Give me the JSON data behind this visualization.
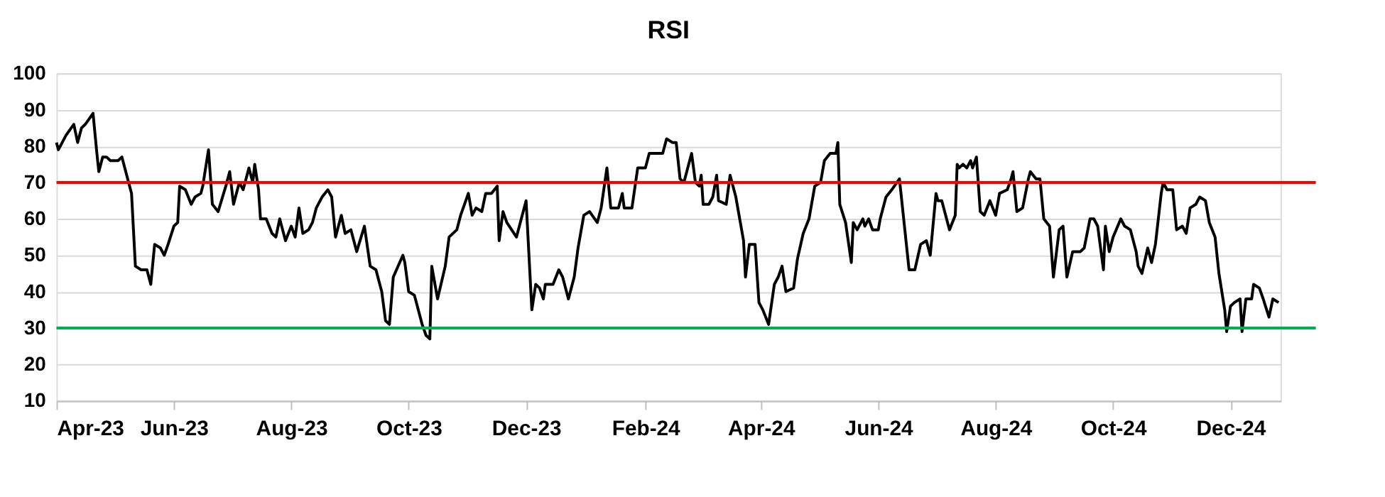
{
  "chart_data": {
    "type": "line",
    "title": "RSI",
    "x": [
      "2023-04-01",
      "2023-04-02",
      "2023-04-06",
      "2023-04-10",
      "2023-04-12",
      "2023-04-14",
      "2023-04-16",
      "2023-04-20",
      "2023-04-22",
      "2023-04-23",
      "2023-04-25",
      "2023-04-27",
      "2023-04-29",
      "2023-05-03",
      "2023-05-05",
      "2023-05-06",
      "2023-05-08",
      "2023-05-10",
      "2023-05-12",
      "2023-05-15",
      "2023-05-18",
      "2023-05-20",
      "2023-05-22",
      "2023-05-25",
      "2023-05-27",
      "2023-05-29",
      "2023-06-01",
      "2023-06-03",
      "2023-06-04",
      "2023-06-07",
      "2023-06-10",
      "2023-06-12",
      "2023-06-15",
      "2023-06-16",
      "2023-06-19",
      "2023-06-21",
      "2023-06-24",
      "2023-06-28",
      "2023-06-30",
      "2023-07-02",
      "2023-07-05",
      "2023-07-07",
      "2023-07-10",
      "2023-07-12",
      "2023-07-13",
      "2023-07-15",
      "2023-07-16",
      "2023-07-19",
      "2023-07-22",
      "2023-07-24",
      "2023-07-26",
      "2023-07-29",
      "2023-08-01",
      "2023-08-03",
      "2023-08-05",
      "2023-08-07",
      "2023-08-10",
      "2023-08-12",
      "2023-08-14",
      "2023-08-17",
      "2023-08-20",
      "2023-08-22",
      "2023-08-24",
      "2023-08-27",
      "2023-08-29",
      "2023-09-01",
      "2023-09-04",
      "2023-09-08",
      "2023-09-11",
      "2023-09-14",
      "2023-09-17",
      "2023-09-19",
      "2023-09-21",
      "2023-09-23",
      "2023-09-28",
      "2023-09-29",
      "2023-10-01",
      "2023-10-04",
      "2023-10-06",
      "2023-10-08",
      "2023-10-10",
      "2023-10-12",
      "2023-10-13",
      "2023-10-16",
      "2023-10-20",
      "2023-10-22",
      "2023-10-26",
      "2023-10-28",
      "2023-10-30",
      "2023-11-01",
      "2023-11-03",
      "2023-11-05",
      "2023-11-08",
      "2023-11-10",
      "2023-11-13",
      "2023-11-16",
      "2023-11-17",
      "2023-11-19",
      "2023-11-21",
      "2023-11-26",
      "2023-11-29",
      "2023-12-01",
      "2023-12-04",
      "2023-12-06",
      "2023-12-08",
      "2023-12-10",
      "2023-12-11",
      "2023-12-15",
      "2023-12-18",
      "2023-12-20",
      "2023-12-23",
      "2023-12-26",
      "2023-12-28",
      "2023-12-31",
      "2024-01-03",
      "2024-01-07",
      "2024-01-09",
      "2024-01-12",
      "2024-01-14",
      "2024-01-18",
      "2024-01-20",
      "2024-01-21",
      "2024-01-25",
      "2024-01-28",
      "2024-02-01",
      "2024-02-03",
      "2024-02-06",
      "2024-02-10",
      "2024-02-12",
      "2024-02-15",
      "2024-02-17",
      "2024-02-19",
      "2024-02-21",
      "2024-02-25",
      "2024-02-27",
      "2024-02-29",
      "2024-03-01",
      "2024-03-02",
      "2024-03-05",
      "2024-03-07",
      "2024-03-09",
      "2024-03-10",
      "2024-03-14",
      "2024-03-16",
      "2024-03-19",
      "2024-03-21",
      "2024-03-23",
      "2024-03-24",
      "2024-03-26",
      "2024-03-29",
      "2024-03-31",
      "2024-04-02",
      "2024-04-05",
      "2024-04-08",
      "2024-04-10",
      "2024-04-12",
      "2024-04-14",
      "2024-04-18",
      "2024-04-20",
      "2024-04-23",
      "2024-04-26",
      "2024-04-27",
      "2024-04-29",
      "2024-05-02",
      "2024-05-04",
      "2024-05-07",
      "2024-05-10",
      "2024-05-11",
      "2024-05-12",
      "2024-05-15",
      "2024-05-18",
      "2024-05-19",
      "2024-05-21",
      "2024-05-24",
      "2024-05-25",
      "2024-05-27",
      "2024-05-29",
      "2024-06-01",
      "2024-06-02",
      "2024-06-05",
      "2024-06-08",
      "2024-06-12",
      "2024-06-15",
      "2024-06-17",
      "2024-06-20",
      "2024-06-23",
      "2024-06-26",
      "2024-06-28",
      "2024-07-01",
      "2024-07-02",
      "2024-07-04",
      "2024-07-07",
      "2024-07-08",
      "2024-07-11",
      "2024-07-12",
      "2024-07-13",
      "2024-07-15",
      "2024-07-17",
      "2024-07-19",
      "2024-07-20",
      "2024-07-22",
      "2024-07-24",
      "2024-07-26",
      "2024-07-29",
      "2024-08-01",
      "2024-08-03",
      "2024-08-07",
      "2024-08-09",
      "2024-08-10",
      "2024-08-12",
      "2024-08-15",
      "2024-08-18",
      "2024-08-19",
      "2024-08-22",
      "2024-08-24",
      "2024-08-26",
      "2024-08-29",
      "2024-08-31",
      "2024-09-03",
      "2024-09-05",
      "2024-09-07",
      "2024-09-10",
      "2024-09-14",
      "2024-09-16",
      "2024-09-19",
      "2024-09-21",
      "2024-09-23",
      "2024-09-26",
      "2024-09-27",
      "2024-09-29",
      "2024-10-01",
      "2024-10-05",
      "2024-10-07",
      "2024-10-10",
      "2024-10-13",
      "2024-10-14",
      "2024-10-16",
      "2024-10-19",
      "2024-10-21",
      "2024-10-23",
      "2024-10-26",
      "2024-10-27",
      "2024-10-29",
      "2024-11-01",
      "2024-11-03",
      "2024-11-06",
      "2024-11-08",
      "2024-11-10",
      "2024-11-13",
      "2024-11-15",
      "2024-11-18",
      "2024-11-20",
      "2024-11-23",
      "2024-11-25",
      "2024-11-28",
      "2024-11-29",
      "2024-12-01",
      "2024-12-03",
      "2024-12-06",
      "2024-12-07",
      "2024-12-09",
      "2024-12-12",
      "2024-12-13",
      "2024-12-16",
      "2024-12-18",
      "2024-12-21",
      "2024-12-23",
      "2024-12-26"
    ],
    "series": [
      {
        "color": "#000000",
        "values": [
          81,
          79,
          83,
          86,
          81,
          85,
          86,
          89,
          78,
          73,
          77,
          77,
          76,
          76,
          77,
          75,
          71,
          67,
          47,
          46,
          46,
          42,
          53,
          52,
          50,
          53,
          58,
          59,
          69,
          68,
          64,
          66,
          67,
          69,
          79,
          64,
          62,
          69,
          73,
          64,
          70,
          68,
          74,
          70,
          75,
          68,
          60,
          60,
          56,
          55,
          60,
          54,
          58,
          55,
          63,
          56,
          57,
          59,
          63,
          66,
          68,
          66,
          55,
          61,
          56,
          57,
          51,
          58,
          47,
          46,
          40,
          32,
          31,
          44,
          50,
          48,
          40,
          39,
          35,
          31,
          28,
          27,
          47,
          38,
          47,
          55,
          57,
          61,
          64,
          67,
          61,
          63,
          62,
          67,
          67,
          69,
          54,
          62,
          59,
          55,
          61,
          65,
          35,
          42,
          41,
          38,
          42,
          42,
          46,
          44,
          38,
          44,
          52,
          61,
          62,
          59,
          63,
          74,
          63,
          63,
          67,
          63,
          63,
          74,
          74,
          78,
          78,
          78,
          82,
          81,
          81,
          71,
          70,
          78,
          70,
          69,
          72,
          64,
          64,
          66,
          72,
          65,
          64,
          72,
          66,
          60,
          54,
          44,
          53,
          53,
          37,
          35,
          31,
          42,
          44,
          47,
          40,
          41,
          49,
          56,
          60,
          63,
          69,
          70,
          76,
          78,
          78,
          81,
          64,
          59,
          48,
          59,
          57,
          60,
          58,
          60,
          57,
          57,
          60,
          66,
          68,
          71,
          56,
          46,
          46,
          53,
          54,
          50,
          67,
          65,
          65,
          59,
          57,
          61,
          75,
          74,
          75,
          74,
          76,
          74,
          77,
          62,
          61,
          65,
          61,
          67,
          68,
          71,
          73,
          62,
          63,
          71,
          73,
          71,
          71,
          60,
          58,
          44,
          57,
          58,
          44,
          51,
          51,
          52,
          60,
          60,
          58,
          46,
          58,
          51,
          55,
          60,
          58,
          57,
          51,
          47,
          45,
          52,
          48,
          53,
          67,
          70,
          68,
          68,
          57,
          58,
          56,
          63,
          64,
          66,
          65,
          59,
          55,
          45,
          35,
          29,
          36,
          37,
          38,
          29,
          38,
          38,
          42,
          41,
          38,
          33,
          38,
          37
        ]
      }
    ],
    "xlim": [
      "2023-04-01",
      "2024-12-27"
    ],
    "xticks": [
      {
        "value": "2023-04-01",
        "label": "Apr-23"
      },
      {
        "value": "2023-06-01",
        "label": "Jun-23"
      },
      {
        "value": "2023-08-01",
        "label": "Aug-23"
      },
      {
        "value": "2023-10-01",
        "label": "Oct-23"
      },
      {
        "value": "2023-12-01",
        "label": "Dec-23"
      },
      {
        "value": "2024-02-01",
        "label": "Feb-24"
      },
      {
        "value": "2024-04-01",
        "label": "Apr-24"
      },
      {
        "value": "2024-06-01",
        "label": "Jun-24"
      },
      {
        "value": "2024-08-01",
        "label": "Aug-24"
      },
      {
        "value": "2024-10-01",
        "label": "Oct-24"
      },
      {
        "value": "2024-12-01",
        "label": "Dec-24"
      }
    ],
    "ylim": [
      10,
      100
    ],
    "yticks": [
      10,
      20,
      30,
      40,
      50,
      60,
      70,
      80,
      90,
      100
    ],
    "grid": "y",
    "ref_lines": [
      {
        "axis": "y",
        "value": 70,
        "color": "#ff0000"
      },
      {
        "axis": "y",
        "value": 30,
        "color": "#00b050"
      }
    ]
  }
}
